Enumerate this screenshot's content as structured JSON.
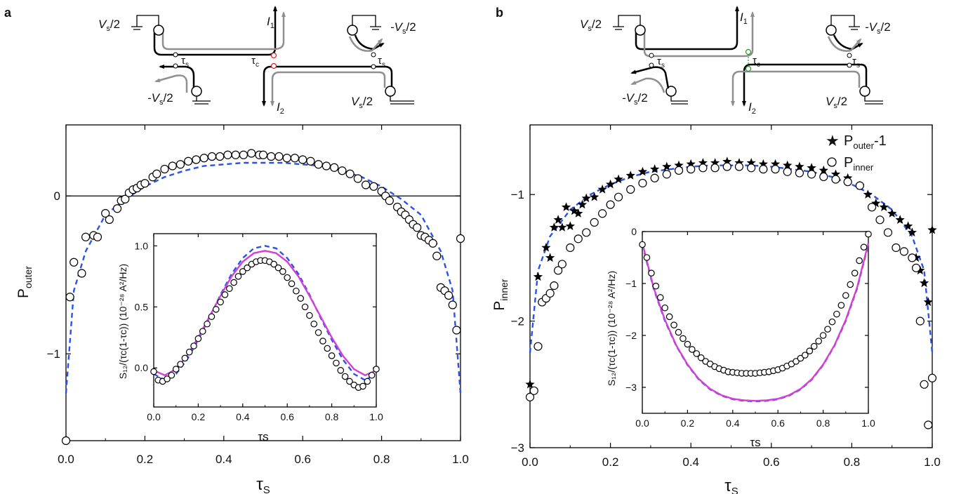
{
  "figure": {
    "panels": [
      {
        "label": "a",
        "schematic": {
          "labels": [
            "V",
            "s",
            "/2",
            "-V",
            "s",
            "/2",
            "I",
            "1",
            "I",
            "2",
            "τ",
            "s",
            "τ",
            "c",
            "τ",
            "s",
            "-V",
            "s",
            "/2",
            "V",
            "s",
            "/2"
          ]
        },
        "main": {
          "ylabel": [
            "P",
            "outer"
          ],
          "xlabel": [
            "τ",
            "S"
          ],
          "xticks": [
            "0.0",
            "0.2",
            "0.4",
            "0.6",
            "0.8",
            "1.0"
          ],
          "yticks": [
            "0",
            "−1"
          ]
        },
        "inset": {
          "ylabel": "S₁₂/(τc(1-τc)) (10⁻²⁸ A²/Hz)",
          "xlabel": "τs",
          "xticks": [
            "0.0",
            "0.2",
            "0.4",
            "0.6",
            "0.8",
            "1.0"
          ],
          "yticks": [
            "0.0",
            "0.5",
            "1.0"
          ]
        }
      },
      {
        "label": "b",
        "schematic": {
          "labels": [
            "V",
            "s",
            "/2",
            "-V",
            "s",
            "/2",
            "I",
            "1",
            "I",
            "2",
            "τ",
            "s",
            "τ",
            "c",
            "τ",
            "s",
            "-V",
            "s",
            "/2",
            "V",
            "s",
            "/2"
          ]
        },
        "main": {
          "ylabel": [
            "P",
            "inner"
          ],
          "xlabel": [
            "τ",
            "S"
          ],
          "xticks": [
            "0.0",
            "0.2",
            "0.4",
            "0.6",
            "0.8",
            "1.0"
          ],
          "yticks": [
            "−1",
            "−2",
            "−3"
          ],
          "legend": [
            {
              "symbol": "star",
              "text": [
                "P",
                "outer",
                "-1"
              ]
            },
            {
              "symbol": "circle",
              "text": [
                "P",
                "inner"
              ]
            }
          ]
        },
        "inset": {
          "ylabel": "S₁₂/(τc(1-τc)) (10⁻²⁸ A²/Hz)",
          "xlabel": "τs",
          "xticks": [
            "0.0",
            "0.2",
            "0.4",
            "0.6",
            "0.8",
            "1.0"
          ],
          "yticks": [
            "0",
            "−1",
            "−2",
            "−3"
          ]
        }
      }
    ]
  },
  "colors": {
    "data_marker": "#000000",
    "dashed_fit": "#2a52e6",
    "solid_fit": "#d43fd6",
    "schematic_gray": "#8f8f8f",
    "tau_c_a": "#d62020",
    "tau_c_b": "#2a9a2a"
  },
  "chart_data": [
    {
      "type": "scatter",
      "panel": "a main",
      "ylabel": "P_outer",
      "xlabel": "τ_S",
      "xlim": [
        0,
        1
      ],
      "ylim": [
        -1.55,
        0.45
      ],
      "hline": 0,
      "series": [
        {
          "marker": "open-circle",
          "x": [
            0.0,
            0.01,
            0.02,
            0.04,
            0.05,
            0.07,
            0.08,
            0.1,
            0.11,
            0.13,
            0.14,
            0.15,
            0.16,
            0.17,
            0.18,
            0.19,
            0.2,
            0.22,
            0.23,
            0.25,
            0.27,
            0.29,
            0.31,
            0.33,
            0.35,
            0.37,
            0.39,
            0.41,
            0.43,
            0.45,
            0.47,
            0.49,
            0.5,
            0.52,
            0.54,
            0.56,
            0.58,
            0.6,
            0.62,
            0.64,
            0.66,
            0.68,
            0.7,
            0.72,
            0.74,
            0.76,
            0.78,
            0.8,
            0.81,
            0.82,
            0.84,
            0.85,
            0.86,
            0.87,
            0.88,
            0.89,
            0.9,
            0.91,
            0.92,
            0.93,
            0.94,
            0.95,
            0.96,
            0.97,
            0.98,
            0.99,
            1.0
          ],
          "y": [
            -1.55,
            -0.64,
            -0.42,
            -0.49,
            -0.26,
            -0.25,
            -0.26,
            -0.11,
            -0.15,
            -0.08,
            -0.03,
            -0.02,
            0.02,
            0.04,
            0.05,
            0.07,
            0.08,
            0.12,
            0.14,
            0.17,
            0.19,
            0.2,
            0.22,
            0.23,
            0.24,
            0.25,
            0.25,
            0.26,
            0.26,
            0.26,
            0.27,
            0.26,
            0.26,
            0.25,
            0.25,
            0.24,
            0.24,
            0.23,
            0.22,
            0.2,
            0.19,
            0.18,
            0.16,
            0.14,
            0.11,
            0.07,
            0.06,
            0.03,
            0.0,
            -0.03,
            -0.07,
            -0.1,
            -0.12,
            -0.15,
            -0.18,
            -0.2,
            -0.25,
            -0.26,
            -0.28,
            -0.3,
            -0.38,
            -0.58,
            -0.6,
            -0.63,
            -0.69,
            -0.85,
            -0.27
          ]
        },
        {
          "name": "",
          "style": "dashed",
          "x": [
            0.0,
            0.02,
            0.05,
            0.1,
            0.15,
            0.2,
            0.25,
            0.3,
            0.35,
            0.4,
            0.45,
            0.5,
            0.55,
            0.6,
            0.65,
            0.7,
            0.75,
            0.8,
            0.85,
            0.9,
            0.95,
            0.98,
            1.0
          ],
          "y": [
            -1.25,
            -0.6,
            -0.35,
            -0.12,
            -0.02,
            0.06,
            0.12,
            0.16,
            0.19,
            0.2,
            0.21,
            0.21,
            0.21,
            0.2,
            0.19,
            0.16,
            0.12,
            0.06,
            -0.02,
            -0.12,
            -0.35,
            -0.6,
            -1.25
          ]
        }
      ]
    },
    {
      "type": "scatter",
      "panel": "a inset",
      "ylabel": "S12/(τc(1-τc)) (10^-28 A^2/Hz)",
      "xlabel": "τs",
      "xlim": [
        0,
        1
      ],
      "ylim": [
        -0.32,
        1.1
      ],
      "series": [
        {
          "marker": "open-circle",
          "x": [
            0.0,
            0.02,
            0.04,
            0.06,
            0.08,
            0.1,
            0.12,
            0.14,
            0.16,
            0.18,
            0.2,
            0.22,
            0.24,
            0.26,
            0.28,
            0.3,
            0.32,
            0.34,
            0.36,
            0.38,
            0.4,
            0.42,
            0.44,
            0.46,
            0.48,
            0.5,
            0.52,
            0.54,
            0.56,
            0.58,
            0.6,
            0.62,
            0.64,
            0.66,
            0.68,
            0.7,
            0.72,
            0.74,
            0.76,
            0.78,
            0.8,
            0.82,
            0.84,
            0.86,
            0.88,
            0.9,
            0.92,
            0.94,
            0.96,
            0.98,
            1.0
          ],
          "y": [
            -0.03,
            -0.1,
            -0.11,
            -0.09,
            -0.06,
            -0.01,
            0.03,
            0.08,
            0.13,
            0.18,
            0.24,
            0.3,
            0.36,
            0.42,
            0.48,
            0.54,
            0.6,
            0.65,
            0.7,
            0.75,
            0.79,
            0.82,
            0.85,
            0.87,
            0.88,
            0.88,
            0.87,
            0.85,
            0.82,
            0.79,
            0.74,
            0.69,
            0.63,
            0.57,
            0.5,
            0.43,
            0.36,
            0.29,
            0.22,
            0.16,
            0.1,
            0.04,
            -0.02,
            -0.07,
            -0.11,
            -0.14,
            -0.16,
            -0.15,
            -0.11,
            -0.06,
            -0.01
          ]
        },
        {
          "name": "",
          "style": "dashed",
          "x": [
            0.0,
            0.05,
            0.1,
            0.15,
            0.2,
            0.25,
            0.3,
            0.35,
            0.4,
            0.45,
            0.5,
            0.55,
            0.6,
            0.65,
            0.7,
            0.75,
            0.8,
            0.85,
            0.9,
            0.95,
            1.0
          ],
          "y": [
            -0.05,
            -0.1,
            -0.05,
            0.07,
            0.23,
            0.41,
            0.6,
            0.77,
            0.9,
            0.98,
            1.0,
            0.98,
            0.9,
            0.77,
            0.6,
            0.41,
            0.23,
            0.07,
            -0.05,
            -0.1,
            -0.05
          ]
        },
        {
          "name": "",
          "style": "solid",
          "x": [
            0.0,
            0.05,
            0.1,
            0.15,
            0.2,
            0.25,
            0.3,
            0.35,
            0.4,
            0.45,
            0.5,
            0.55,
            0.6,
            0.65,
            0.7,
            0.75,
            0.8,
            0.85,
            0.9,
            0.95,
            1.0
          ],
          "y": [
            -0.02,
            -0.06,
            -0.01,
            0.1,
            0.25,
            0.42,
            0.59,
            0.75,
            0.87,
            0.94,
            0.96,
            0.94,
            0.87,
            0.75,
            0.59,
            0.42,
            0.25,
            0.1,
            -0.01,
            -0.06,
            -0.02
          ]
        }
      ]
    },
    {
      "type": "scatter",
      "panel": "b main",
      "ylabel": "P_inner",
      "xlabel": "τ_S",
      "xlim": [
        0,
        1
      ],
      "ylim": [
        -3.0,
        -0.45
      ],
      "series": [
        {
          "name": "P_outer-1",
          "marker": "star",
          "x": [
            0.0,
            0.02,
            0.04,
            0.05,
            0.06,
            0.07,
            0.08,
            0.09,
            0.1,
            0.11,
            0.12,
            0.13,
            0.14,
            0.16,
            0.18,
            0.2,
            0.22,
            0.25,
            0.28,
            0.31,
            0.34,
            0.37,
            0.4,
            0.43,
            0.46,
            0.49,
            0.52,
            0.55,
            0.58,
            0.61,
            0.64,
            0.67,
            0.7,
            0.73,
            0.76,
            0.79,
            0.82,
            0.84,
            0.86,
            0.88,
            0.9,
            0.92,
            0.94,
            0.95,
            0.96,
            0.97,
            0.98,
            0.99,
            1.0
          ],
          "y": [
            -2.5,
            -1.65,
            -1.42,
            -1.5,
            -1.26,
            -1.2,
            -1.26,
            -1.1,
            -1.25,
            -1.13,
            -1.15,
            -1.08,
            -1.03,
            -1.02,
            -0.96,
            -0.92,
            -0.88,
            -0.85,
            -0.82,
            -0.8,
            -0.78,
            -0.77,
            -0.76,
            -0.75,
            -0.75,
            -0.74,
            -0.75,
            -0.75,
            -0.76,
            -0.76,
            -0.77,
            -0.78,
            -0.79,
            -0.81,
            -0.84,
            -0.87,
            -0.93,
            -1.0,
            -1.07,
            -1.1,
            -1.15,
            -1.2,
            -1.25,
            -1.3,
            -1.5,
            -1.6,
            -1.7,
            -1.85,
            -1.28
          ]
        },
        {
          "name": "P_inner",
          "marker": "open-circle",
          "x": [
            0.0,
            0.01,
            0.02,
            0.03,
            0.04,
            0.05,
            0.06,
            0.07,
            0.08,
            0.1,
            0.12,
            0.14,
            0.16,
            0.18,
            0.2,
            0.22,
            0.25,
            0.28,
            0.31,
            0.34,
            0.37,
            0.4,
            0.43,
            0.46,
            0.49,
            0.52,
            0.55,
            0.58,
            0.61,
            0.64,
            0.67,
            0.7,
            0.73,
            0.76,
            0.79,
            0.82,
            0.85,
            0.87,
            0.89,
            0.91,
            0.93,
            0.95,
            0.96,
            0.97,
            0.98,
            0.99,
            1.0
          ],
          "y": [
            -2.6,
            -2.55,
            -2.2,
            -1.85,
            -1.82,
            -1.78,
            -1.72,
            -1.6,
            -1.55,
            -1.42,
            -1.35,
            -1.3,
            -1.22,
            -1.15,
            -1.08,
            -1.02,
            -0.96,
            -0.91,
            -0.87,
            -0.84,
            -0.81,
            -0.8,
            -0.79,
            -0.79,
            -0.78,
            -0.78,
            -0.79,
            -0.8,
            -0.8,
            -0.82,
            -0.83,
            -0.84,
            -0.86,
            -0.88,
            -0.9,
            -0.93,
            -1.1,
            -1.2,
            -1.3,
            -1.42,
            -1.45,
            -1.5,
            -1.58,
            -2.0,
            -2.5,
            -2.82,
            -2.45
          ]
        },
        {
          "name": "",
          "style": "dashed",
          "x": [
            0.0,
            0.02,
            0.05,
            0.1,
            0.15,
            0.2,
            0.25,
            0.3,
            0.35,
            0.4,
            0.45,
            0.5,
            0.55,
            0.6,
            0.65,
            0.7,
            0.75,
            0.8,
            0.85,
            0.9,
            0.95,
            0.98,
            1.0
          ],
          "y": [
            -2.25,
            -1.6,
            -1.33,
            -1.12,
            -1.0,
            -0.92,
            -0.86,
            -0.82,
            -0.8,
            -0.78,
            -0.77,
            -0.77,
            -0.77,
            -0.78,
            -0.8,
            -0.82,
            -0.86,
            -0.92,
            -1.0,
            -1.12,
            -1.33,
            -1.6,
            -2.25
          ]
        }
      ]
    },
    {
      "type": "scatter",
      "panel": "b inset",
      "ylabel": "S12/(τc(1-τc)) (10^-28 A^2/Hz)",
      "xlabel": "τs",
      "xlim": [
        0,
        1
      ],
      "ylim": [
        -3.5,
        0
      ],
      "series": [
        {
          "marker": "open-circle",
          "x": [
            0.0,
            0.02,
            0.04,
            0.06,
            0.08,
            0.1,
            0.12,
            0.14,
            0.16,
            0.18,
            0.2,
            0.22,
            0.24,
            0.26,
            0.28,
            0.3,
            0.32,
            0.34,
            0.36,
            0.38,
            0.4,
            0.42,
            0.44,
            0.46,
            0.48,
            0.5,
            0.52,
            0.54,
            0.56,
            0.58,
            0.6,
            0.62,
            0.64,
            0.66,
            0.68,
            0.7,
            0.72,
            0.74,
            0.76,
            0.78,
            0.8,
            0.82,
            0.84,
            0.86,
            0.88,
            0.9,
            0.92,
            0.94,
            0.96,
            0.98,
            1.0
          ],
          "y": [
            -0.25,
            -0.5,
            -0.8,
            -1.05,
            -1.27,
            -1.47,
            -1.64,
            -1.8,
            -1.94,
            -2.06,
            -2.17,
            -2.27,
            -2.35,
            -2.43,
            -2.5,
            -2.55,
            -2.6,
            -2.64,
            -2.67,
            -2.7,
            -2.71,
            -2.72,
            -2.73,
            -2.73,
            -2.73,
            -2.73,
            -2.72,
            -2.71,
            -2.7,
            -2.68,
            -2.66,
            -2.63,
            -2.59,
            -2.55,
            -2.5,
            -2.44,
            -2.38,
            -2.3,
            -2.21,
            -2.11,
            -2.0,
            -1.88,
            -1.74,
            -1.59,
            -1.42,
            -1.23,
            -1.02,
            -0.8,
            -0.56,
            -0.3,
            -0.05
          ]
        },
        {
          "name": "",
          "style": "dashed",
          "x": [
            0.0,
            0.05,
            0.1,
            0.15,
            0.2,
            0.25,
            0.3,
            0.35,
            0.4,
            0.45,
            0.5,
            0.55,
            0.6,
            0.65,
            0.7,
            0.75,
            0.8,
            0.85,
            0.9,
            0.95,
            1.0
          ],
          "y": [
            -0.25,
            -1.1,
            -1.72,
            -2.2,
            -2.57,
            -2.85,
            -3.04,
            -3.16,
            -3.23,
            -3.26,
            -3.27,
            -3.26,
            -3.23,
            -3.16,
            -3.04,
            -2.85,
            -2.57,
            -2.2,
            -1.72,
            -1.1,
            -0.25
          ]
        },
        {
          "name": "",
          "style": "solid",
          "x": [
            0.0,
            0.05,
            0.1,
            0.15,
            0.2,
            0.25,
            0.3,
            0.35,
            0.4,
            0.45,
            0.5,
            0.55,
            0.6,
            0.65,
            0.7,
            0.75,
            0.8,
            0.85,
            0.9,
            0.95,
            1.0
          ],
          "y": [
            -0.22,
            -1.08,
            -1.7,
            -2.19,
            -2.56,
            -2.84,
            -3.03,
            -3.15,
            -3.22,
            -3.25,
            -3.26,
            -3.25,
            -3.22,
            -3.15,
            -3.03,
            -2.84,
            -2.56,
            -2.19,
            -1.7,
            -1.08,
            -0.22
          ]
        }
      ]
    }
  ]
}
